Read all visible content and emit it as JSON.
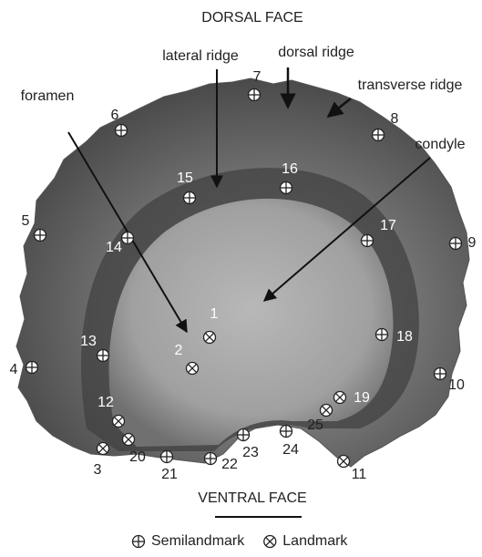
{
  "header": {
    "title": "DORSAL FACE"
  },
  "footer": {
    "title": "VENTRAL FACE"
  },
  "annotations": [
    "lateral ridge",
    "dorsal ridge",
    "transverse ridge",
    "foramen",
    "condyle"
  ],
  "points": [
    {
      "label": "1",
      "kind": "landmark"
    },
    {
      "label": "2",
      "kind": "landmark"
    },
    {
      "label": "3",
      "kind": "landmark"
    },
    {
      "label": "4",
      "kind": "semilandmark"
    },
    {
      "label": "5",
      "kind": "semilandmark"
    },
    {
      "label": "6",
      "kind": "semilandmark"
    },
    {
      "label": "7",
      "kind": "semilandmark"
    },
    {
      "label": "8",
      "kind": "semilandmark"
    },
    {
      "label": "9",
      "kind": "semilandmark"
    },
    {
      "label": "10",
      "kind": "semilandmark"
    },
    {
      "label": "11",
      "kind": "landmark"
    },
    {
      "label": "12",
      "kind": "landmark"
    },
    {
      "label": "13",
      "kind": "semilandmark"
    },
    {
      "label": "14",
      "kind": "semilandmark"
    },
    {
      "label": "15",
      "kind": "semilandmark"
    },
    {
      "label": "16",
      "kind": "semilandmark"
    },
    {
      "label": "17",
      "kind": "semilandmark"
    },
    {
      "label": "18",
      "kind": "semilandmark"
    },
    {
      "label": "19",
      "kind": "landmark"
    },
    {
      "label": "20",
      "kind": "landmark"
    },
    {
      "label": "21",
      "kind": "semilandmark"
    },
    {
      "label": "22",
      "kind": "semilandmark"
    },
    {
      "label": "23",
      "kind": "semilandmark"
    },
    {
      "label": "24",
      "kind": "semilandmark"
    },
    {
      "label": "25",
      "kind": "landmark"
    }
  ],
  "legend": [
    {
      "kind": "semilandmark",
      "label": "Semilandmark"
    },
    {
      "kind": "landmark",
      "label": "Landmark"
    }
  ]
}
